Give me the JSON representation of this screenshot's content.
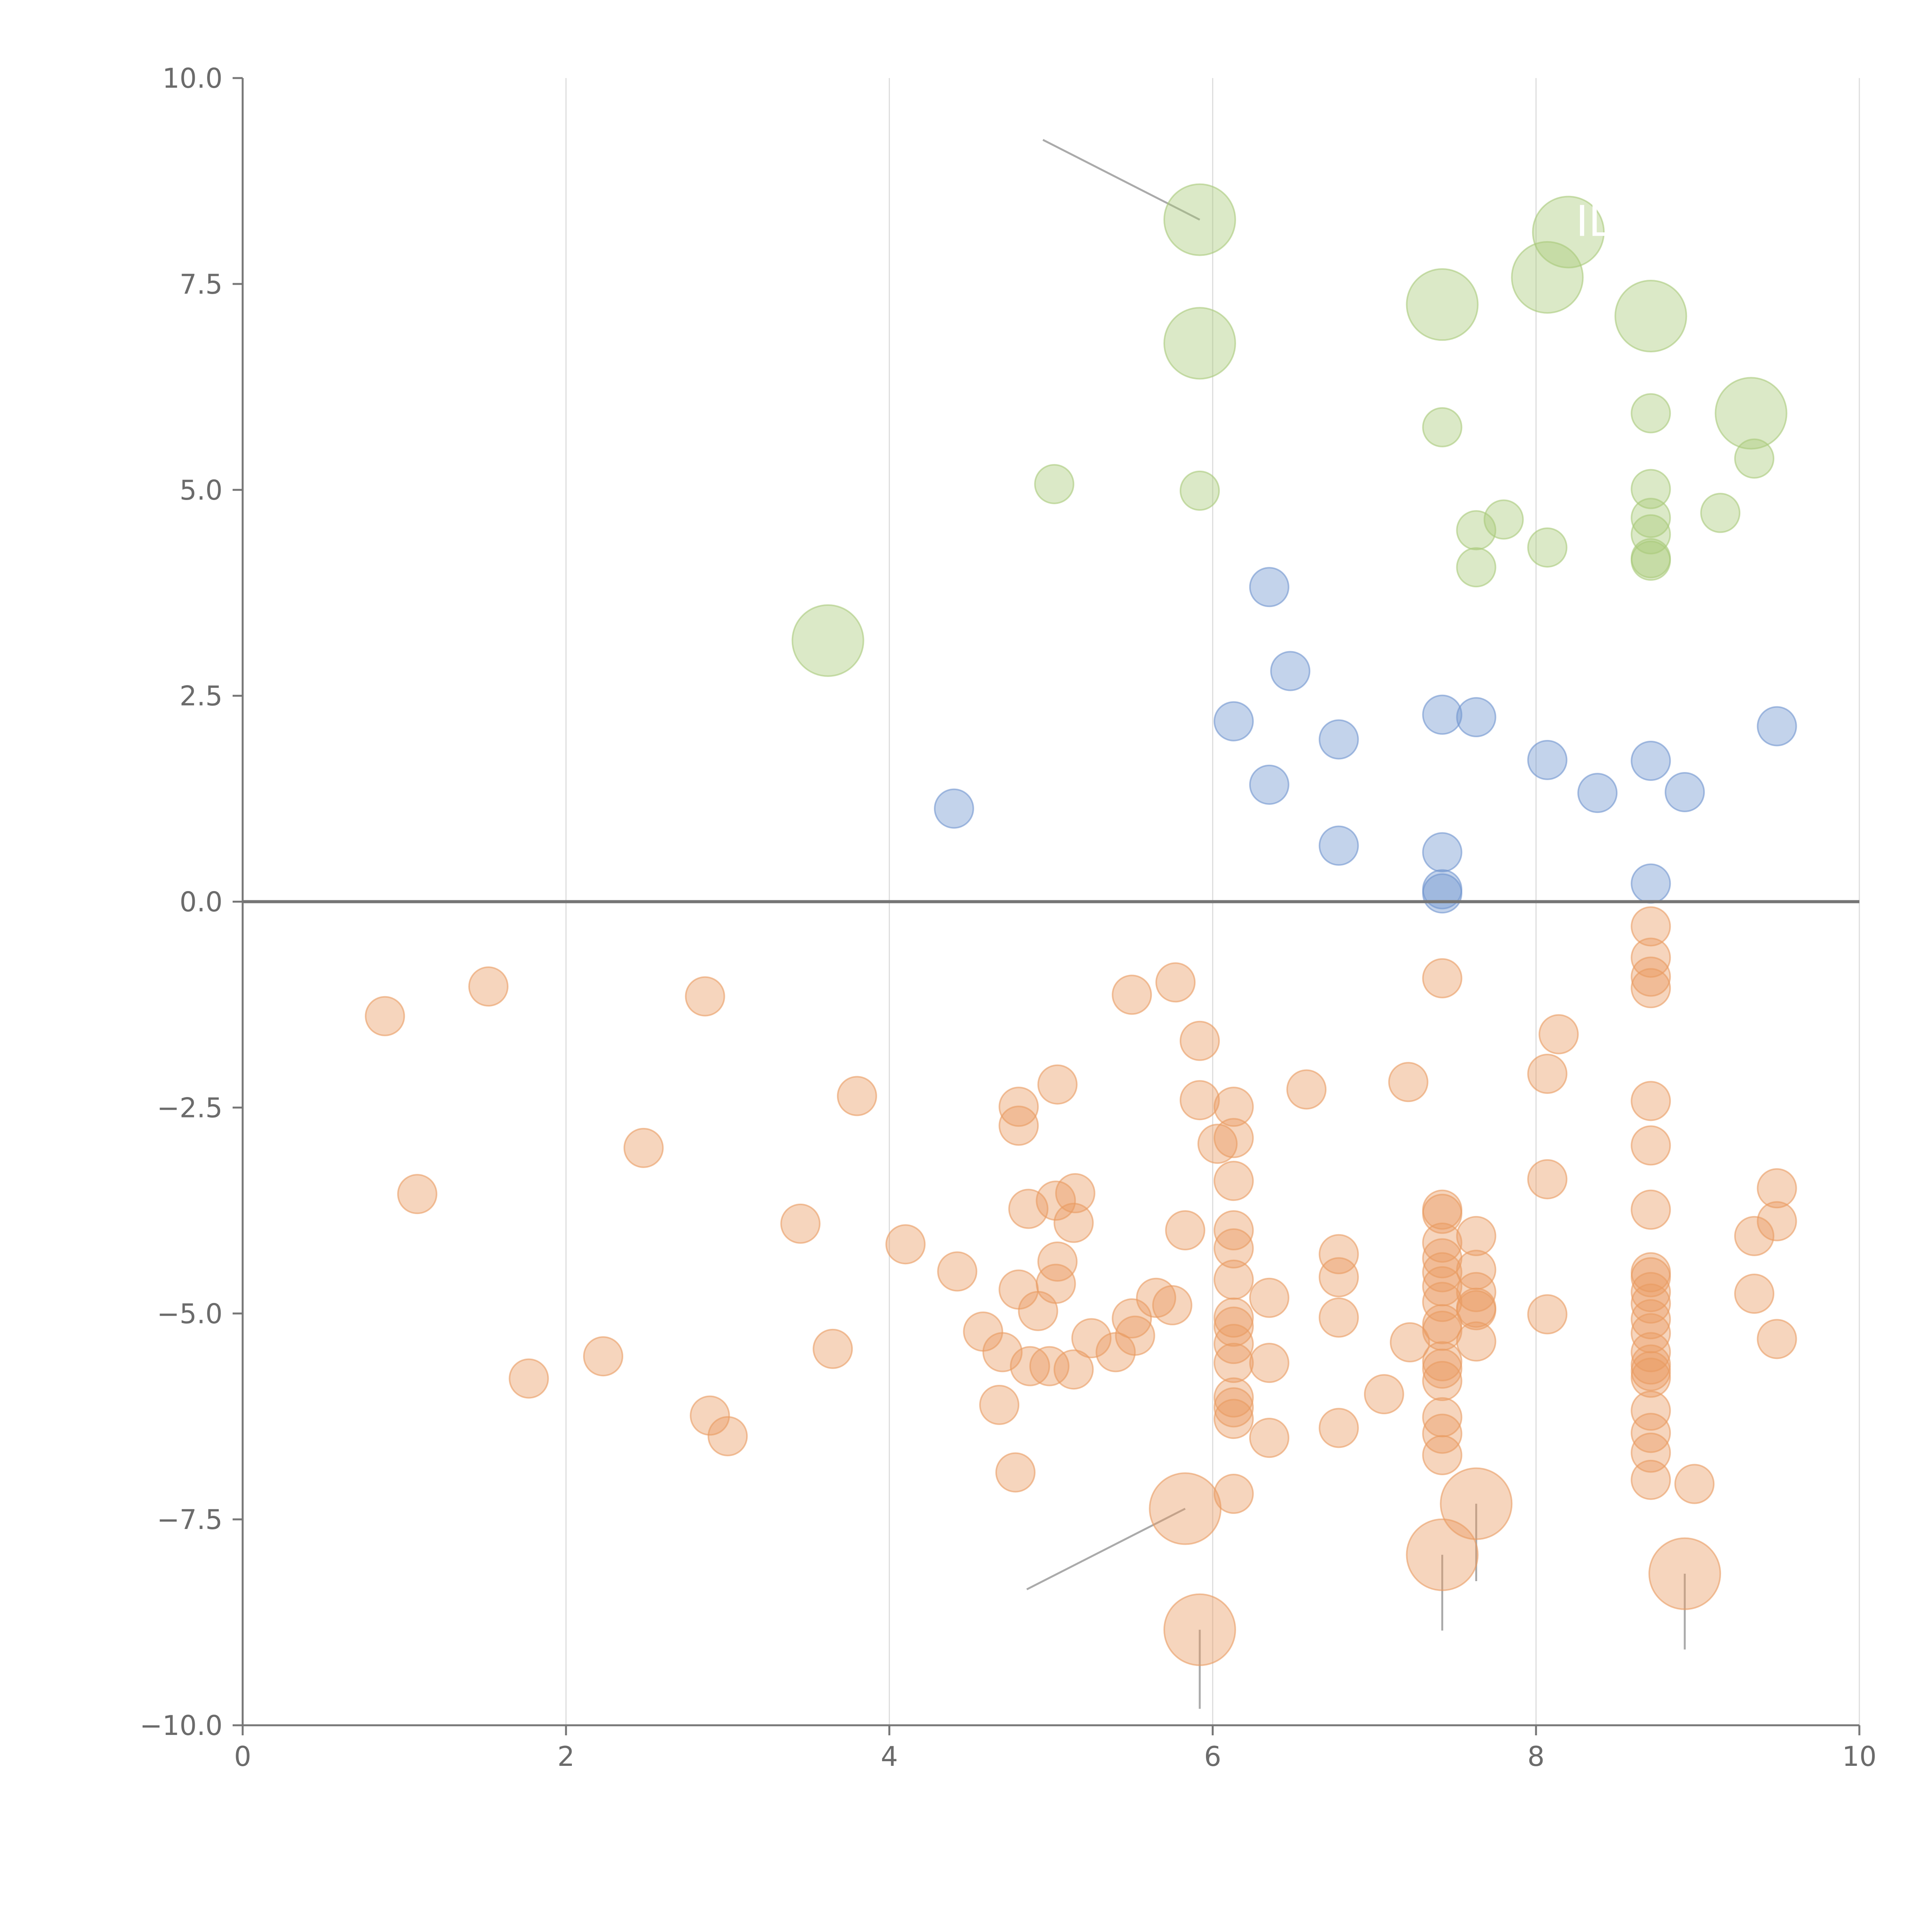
{
  "chart_data": {
    "type": "scatter",
    "title": "",
    "xlabel": "",
    "ylabel": "",
    "xlim": [
      0,
      10
    ],
    "ylim": [
      -10,
      10
    ],
    "x_ticks": [
      0,
      2,
      4,
      6,
      8,
      10
    ],
    "x_tick_labels": [
      "0",
      "2",
      "4",
      "6",
      "8",
      "10"
    ],
    "y_ticks": [
      10,
      7.5,
      5,
      2.5,
      0,
      -2.5,
      -5,
      -7.5,
      -10
    ],
    "y_tick_labels": [
      "10.0",
      "7.5",
      "5.0",
      "2.5",
      "0.0",
      "−2.5",
      "−5.0",
      "−7.5",
      "−10.0"
    ],
    "grid": "vertical lines at x ticks",
    "legend": "none",
    "reference_line_y": 0,
    "marker": "circle (semi-transparent)",
    "series": [
      {
        "color": "#6f95cf",
        "size": "small",
        "points": [
          [
            4.4,
            1.13
          ],
          [
            6.35,
            3.82
          ],
          [
            6.48,
            2.8
          ],
          [
            6.13,
            2.19
          ],
          [
            6.35,
            1.42
          ],
          [
            6.78,
            1.97
          ],
          [
            6.78,
            0.68
          ],
          [
            7.42,
            2.27
          ],
          [
            7.63,
            2.24
          ],
          [
            7.42,
            0.6
          ],
          [
            7.42,
            0.15
          ],
          [
            7.42,
            0.1
          ],
          [
            8.07,
            1.72
          ],
          [
            8.38,
            1.32
          ],
          [
            8.71,
            1.71
          ],
          [
            8.71,
            0.22
          ],
          [
            8.92,
            1.33
          ],
          [
            9.49,
            2.13
          ]
        ]
      },
      {
        "color": "#a9ca7a",
        "size": "small",
        "points": [
          [
            5.02,
            5.07
          ],
          [
            5.92,
            4.99
          ],
          [
            7.42,
            5.76
          ],
          [
            7.63,
            4.51
          ],
          [
            7.63,
            4.06
          ],
          [
            7.8,
            4.64
          ],
          [
            8.07,
            4.3
          ],
          [
            8.71,
            5.93
          ],
          [
            8.71,
            5.01
          ],
          [
            8.71,
            4.66
          ],
          [
            8.71,
            4.46
          ],
          [
            8.71,
            4.17
          ],
          [
            8.71,
            4.14
          ],
          [
            9.14,
            4.72
          ],
          [
            9.35,
            5.38
          ]
        ]
      },
      {
        "color": "#a9ca7a",
        "size": "large",
        "points": [
          [
            5.92,
            8.28
          ],
          [
            5.92,
            6.78
          ],
          [
            3.62,
            3.17
          ],
          [
            7.42,
            7.25
          ],
          [
            8.07,
            7.58
          ],
          [
            8.2,
            8.13
          ],
          [
            8.71,
            7.11
          ],
          [
            9.33,
            5.93
          ]
        ]
      },
      {
        "color": "#ea9b61",
        "size": "small",
        "points": [
          [
            0.88,
            -1.39
          ],
          [
            1.52,
            -1.03
          ],
          [
            1.08,
            -3.55
          ],
          [
            1.77,
            -5.79
          ],
          [
            2.23,
            -5.52
          ],
          [
            2.48,
            -2.99
          ],
          [
            2.86,
            -1.15
          ],
          [
            2.89,
            -6.24
          ],
          [
            3.0,
            -6.49
          ],
          [
            3.45,
            -3.91
          ],
          [
            3.65,
            -5.43
          ],
          [
            3.8,
            -2.36
          ],
          [
            4.1,
            -4.16
          ],
          [
            4.42,
            -4.49
          ],
          [
            4.58,
            -5.22
          ],
          [
            4.7,
            -5.47
          ],
          [
            4.68,
            -6.11
          ],
          [
            4.78,
            -6.93
          ],
          [
            4.8,
            -2.49
          ],
          [
            4.8,
            -2.72
          ],
          [
            4.8,
            -4.71
          ],
          [
            4.86,
            -3.73
          ],
          [
            4.92,
            -4.97
          ],
          [
            4.87,
            -5.64
          ],
          [
            4.99,
            -5.64
          ],
          [
            5.03,
            -3.63
          ],
          [
            5.04,
            -4.37
          ],
          [
            5.03,
            -4.64
          ],
          [
            5.04,
            -2.22
          ],
          [
            5.14,
            -3.9
          ],
          [
            5.15,
            -3.54
          ],
          [
            5.14,
            -5.68
          ],
          [
            5.25,
            -5.3
          ],
          [
            5.4,
            -5.47
          ],
          [
            5.5,
            -5.06
          ],
          [
            5.5,
            -1.13
          ],
          [
            5.52,
            -5.27
          ],
          [
            5.65,
            -4.81
          ],
          [
            5.77,
            -0.98
          ],
          [
            5.75,
            -4.9
          ],
          [
            5.83,
            -3.99
          ],
          [
            5.92,
            -1.69
          ],
          [
            5.92,
            -2.41
          ],
          [
            6.03,
            -2.94
          ],
          [
            6.13,
            -2.49
          ],
          [
            6.13,
            -2.87
          ],
          [
            6.13,
            -3.39
          ],
          [
            6.13,
            -3.99
          ],
          [
            6.13,
            -4.21
          ],
          [
            6.13,
            -4.59
          ],
          [
            6.13,
            -5.05
          ],
          [
            6.13,
            -5.16
          ],
          [
            6.13,
            -5.37
          ],
          [
            6.13,
            -5.6
          ],
          [
            6.13,
            -6.02
          ],
          [
            6.13,
            -6.14
          ],
          [
            6.13,
            -6.28
          ],
          [
            6.13,
            -7.19
          ],
          [
            6.35,
            -4.81
          ],
          [
            6.35,
            -5.6
          ],
          [
            6.35,
            -6.51
          ],
          [
            6.58,
            -2.28
          ],
          [
            6.78,
            -4.28
          ],
          [
            6.78,
            -4.56
          ],
          [
            6.78,
            -5.05
          ],
          [
            6.78,
            -6.39
          ],
          [
            7.06,
            -5.98
          ],
          [
            7.21,
            -2.19
          ],
          [
            7.22,
            -5.35
          ],
          [
            7.42,
            -0.93
          ],
          [
            7.42,
            -3.74
          ],
          [
            7.42,
            -3.79
          ],
          [
            7.42,
            -4.14
          ],
          [
            7.42,
            -4.33
          ],
          [
            7.42,
            -4.5
          ],
          [
            7.42,
            -4.67
          ],
          [
            7.42,
            -4.86
          ],
          [
            7.42,
            -5.13
          ],
          [
            7.42,
            -5.21
          ],
          [
            7.42,
            -5.58
          ],
          [
            7.42,
            -5.67
          ],
          [
            7.42,
            -5.82
          ],
          [
            7.42,
            -6.26
          ],
          [
            7.42,
            -6.46
          ],
          [
            7.42,
            -6.72
          ],
          [
            7.63,
            -4.06
          ],
          [
            7.63,
            -4.47
          ],
          [
            7.63,
            -4.74
          ],
          [
            7.63,
            -4.93
          ],
          [
            7.63,
            -4.96
          ],
          [
            7.63,
            -5.34
          ],
          [
            8.07,
            -2.09
          ],
          [
            8.07,
            -3.37
          ],
          [
            8.07,
            -5.01
          ],
          [
            8.14,
            -1.61
          ],
          [
            8.71,
            -0.3
          ],
          [
            8.71,
            -0.68
          ],
          [
            8.71,
            -0.91
          ],
          [
            8.71,
            -1.05
          ],
          [
            8.71,
            -2.42
          ],
          [
            8.71,
            -2.96
          ],
          [
            8.71,
            -3.74
          ],
          [
            8.71,
            -4.5
          ],
          [
            8.71,
            -4.56
          ],
          [
            8.71,
            -4.74
          ],
          [
            8.71,
            -4.88
          ],
          [
            8.71,
            -5.07
          ],
          [
            8.71,
            -5.24
          ],
          [
            8.71,
            -5.47
          ],
          [
            8.71,
            -5.62
          ],
          [
            8.71,
            -5.7
          ],
          [
            8.71,
            -5.78
          ],
          [
            8.71,
            -6.18
          ],
          [
            8.71,
            -6.45
          ],
          [
            8.71,
            -6.69
          ],
          [
            8.71,
            -7.02
          ],
          [
            8.98,
            -7.07
          ],
          [
            9.35,
            -4.06
          ],
          [
            9.35,
            -4.76
          ],
          [
            9.49,
            -3.48
          ],
          [
            9.49,
            -3.88
          ],
          [
            9.49,
            -5.31
          ]
        ]
      },
      {
        "color": "#ea9b61",
        "size": "large",
        "points": [
          [
            5.83,
            -7.37
          ],
          [
            5.92,
            -8.84
          ],
          [
            7.42,
            -7.93
          ],
          [
            7.63,
            -7.31
          ],
          [
            8.92,
            -8.16
          ]
        ]
      }
    ],
    "annotations": [
      {
        "text": "",
        "point": [
          5.92,
          8.28
        ],
        "line_to": [
          4.95,
          9.25
        ],
        "line_color": "#aaaaaa"
      },
      {
        "text": "",
        "point": [
          5.83,
          -7.37
        ],
        "line_to": [
          4.85,
          -8.35
        ],
        "line_color": "#aaaaaa"
      },
      {
        "text": "",
        "point": [
          5.92,
          -8.84
        ],
        "line_to": [
          5.92,
          -9.8
        ],
        "line_color": "#aaaaaa"
      },
      {
        "text": "",
        "point": [
          7.42,
          -7.93
        ],
        "line_to": [
          7.42,
          -8.85
        ],
        "line_color": "#aaaaaa"
      },
      {
        "text": "",
        "point": [
          7.63,
          -7.31
        ],
        "line_to": [
          7.63,
          -8.25
        ],
        "line_color": "#aaaaaa"
      },
      {
        "text": "",
        "point": [
          8.92,
          -8.16
        ],
        "line_to": [
          8.92,
          -9.08
        ],
        "line_color": "#aaaaaa"
      },
      {
        "text": "",
        "point": [
          3.62,
          3.17
        ],
        "line_to": [
          3.75,
          3.33
        ],
        "line_color": "#ffffff"
      },
      {
        "text": "",
        "point": [
          5.92,
          6.78
        ],
        "line_to": [
          5.76,
          6.97
        ],
        "line_color": "#ffffff"
      },
      {
        "text": "",
        "point": [
          7.42,
          7.25
        ],
        "line_to": [
          7.25,
          7.0
        ],
        "line_color": "#ffffff"
      },
      {
        "text": "",
        "point": [
          8.71,
          7.11
        ],
        "line_to": [
          8.2,
          6.95
        ],
        "line_color": "#ffffff"
      },
      {
        "text": "",
        "point": [
          8.07,
          7.58
        ],
        "line_to": [
          8.13,
          7.9
        ],
        "line_color": "#ffffff"
      },
      {
        "text": "ILV",
        "point": [
          8.2,
          8.13
        ],
        "line_to": [
          8.27,
          8.27
        ],
        "line_color": "#ffffff"
      },
      {
        "text": "",
        "point": [
          9.33,
          5.93
        ],
        "line_to": [
          9.35,
          6.05
        ],
        "line_color": "#ffffff"
      }
    ]
  }
}
